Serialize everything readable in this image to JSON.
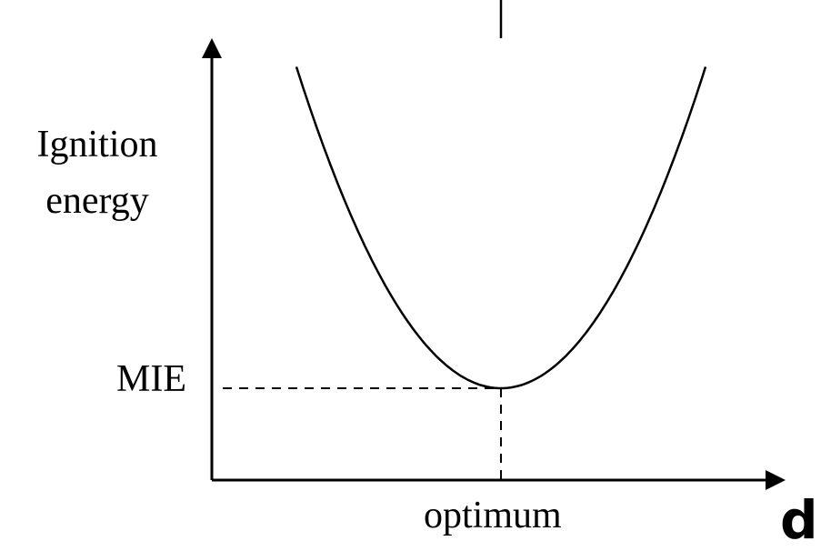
{
  "chart_data": {
    "type": "line",
    "ylabel": [
      "Ignition",
      "energy"
    ],
    "xlabel": "d",
    "x_ticks": [
      {
        "label": "optimum",
        "value": 0
      }
    ],
    "y_ticks": [
      {
        "label": "MIE",
        "value": 1
      }
    ],
    "grid": false,
    "legend": "none",
    "series": [
      {
        "x": [
          -1.0,
          -0.75,
          -0.5,
          -0.25,
          0,
          0.25,
          0.5,
          0.75,
          1.0
        ],
        "y": [
          4.5,
          3.0,
          2.0,
          1.3,
          1.0,
          1.3,
          2.0,
          3.0,
          4.5
        ]
      }
    ],
    "xlim": [
      -1.45,
      1.45
    ],
    "ylim": [
      0,
      5.0
    ]
  }
}
